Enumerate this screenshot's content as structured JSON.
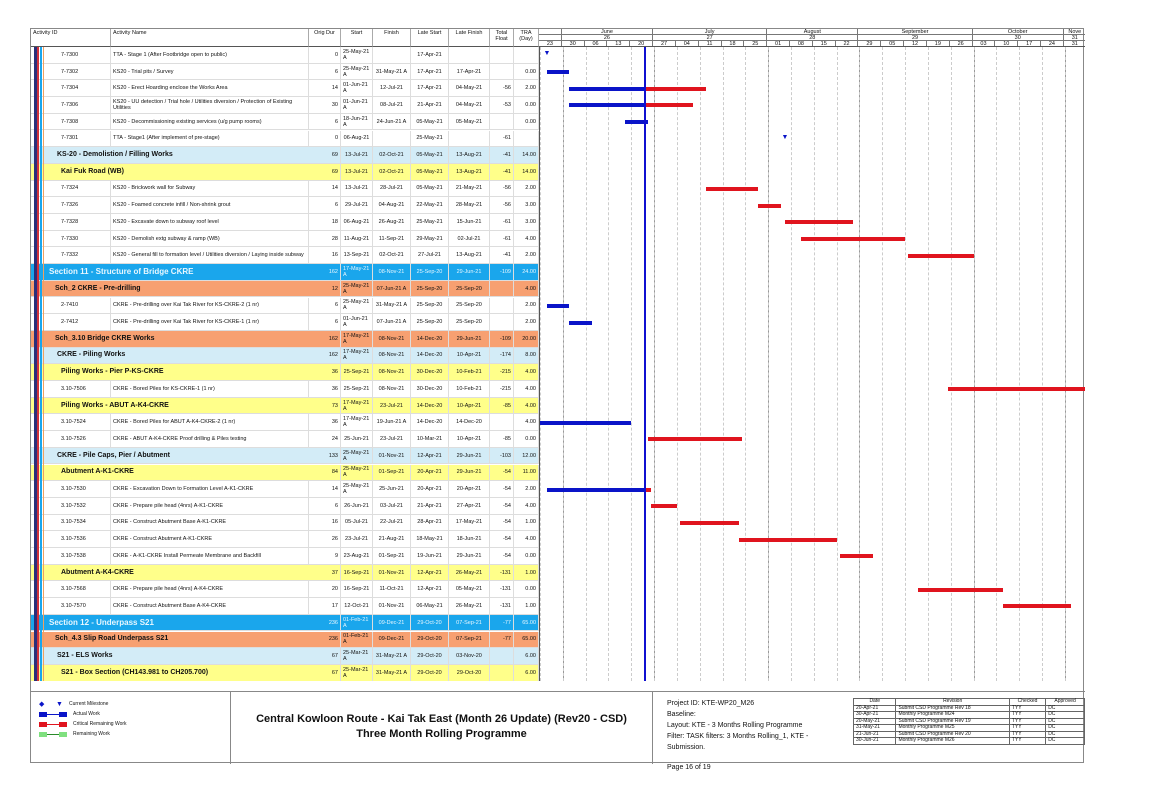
{
  "columns": [
    "Activity ID",
    "Activity Name",
    "Orig Dur",
    "Start",
    "Finish",
    "Late Start",
    "Late Finish",
    "Total Float",
    "TRA (Day)"
  ],
  "colors": {
    "actual": "#0a14c8",
    "critical": "#e0141e",
    "remaining": "#7fe07f",
    "section": "#1aa6ec",
    "summary": "#d3ecf7",
    "wbs": "#ffff8a",
    "orange": "#f7a071",
    "data_date_line": "#1010d0"
  },
  "timeline": {
    "origin": "2021-05-23",
    "data_date": "2021-06-24",
    "months": [
      {
        "name": "",
        "week": "",
        "weeks": 1
      },
      {
        "name": "June",
        "week": "26",
        "weeks": 4
      },
      {
        "name": "July",
        "week": "27",
        "weeks": 5
      },
      {
        "name": "August",
        "week": "28",
        "weeks": 4
      },
      {
        "name": "September",
        "week": "29",
        "weeks": 5
      },
      {
        "name": "October",
        "week": "30",
        "weeks": 4
      },
      {
        "name": "Nove",
        "week": "31",
        "weeks": 1
      }
    ],
    "days": [
      "23",
      "30",
      "06",
      "13",
      "20",
      "27",
      "04",
      "11",
      "18",
      "25",
      "01",
      "08",
      "15",
      "22",
      "29",
      "05",
      "12",
      "19",
      "26",
      "03",
      "10",
      "17",
      "24",
      "31"
    ]
  },
  "rows": [
    {
      "type": "task",
      "id": "7-7300",
      "name": "TTA - Stage 1 (After Footbridge open to public)",
      "dur": "0",
      "start": "25-May-21 A",
      "finish": "",
      "ls": "17-Apr-21",
      "lf": "",
      "tf": "",
      "tra": "",
      "milestone": true
    },
    {
      "type": "task",
      "id": "7-7302",
      "name": "KS20 - Trial pits / Survey",
      "dur": "6",
      "start": "25-May-21 A",
      "finish": "31-May-21 A",
      "ls": "17-Apr-21",
      "lf": "17-Apr-21",
      "tf": "",
      "tra": "0.00"
    },
    {
      "type": "task",
      "id": "7-7304",
      "name": "KS20 - Erect Hoarding enclose the Works Area",
      "dur": "14",
      "start": "01-Jun-21 A",
      "finish": "12-Jul-21",
      "ls": "17-Apr-21",
      "lf": "04-May-21",
      "tf": "-56",
      "tra": "2.00"
    },
    {
      "type": "task",
      "id": "7-7306",
      "name": "KS20 - UU detection / Trial hole / Utilities diversion / Protection of Existing Utilities",
      "dur": "30",
      "start": "01-Jun-21 A",
      "finish": "08-Jul-21",
      "ls": "21-Apr-21",
      "lf": "04-May-21",
      "tf": "-53",
      "tra": "0.00"
    },
    {
      "type": "task",
      "id": "7-7308",
      "name": "KS20 - Decommissioning existing services (u/g pump rooms)",
      "dur": "6",
      "start": "18-Jun-21 A",
      "finish": "24-Jun-21 A",
      "ls": "05-May-21",
      "lf": "05-May-21",
      "tf": "",
      "tra": "0.00"
    },
    {
      "type": "task",
      "id": "7-7301",
      "name": "TTA - Stage1 (After implement of pre-stage)",
      "dur": "0",
      "start": "06-Aug-21",
      "finish": "",
      "ls": "25-May-21",
      "lf": "",
      "tf": "-61",
      "tra": "",
      "milestone": true
    },
    {
      "type": "lblue",
      "name": "KS-20 - Demolistion / Filling Works",
      "dur": "69",
      "start": "13-Jul-21",
      "finish": "02-Oct-21",
      "ls": "05-May-21",
      "lf": "13-Aug-21",
      "tf": "-41",
      "tra": "14.00"
    },
    {
      "type": "yellow",
      "name": "Kai Fuk Road (WB)",
      "dur": "69",
      "start": "13-Jul-21",
      "finish": "02-Oct-21",
      "ls": "05-May-21",
      "lf": "13-Aug-21",
      "tf": "-41",
      "tra": "14.00"
    },
    {
      "type": "task",
      "id": "7-7324",
      "name": "KS20 - Brickwork wall for Subway",
      "dur": "14",
      "start": "13-Jul-21",
      "finish": "28-Jul-21",
      "ls": "05-May-21",
      "lf": "21-May-21",
      "tf": "-56",
      "tra": "2.00"
    },
    {
      "type": "task",
      "id": "7-7326",
      "name": "KS20 - Foamed concrete infill / Non-shrink grout",
      "dur": "6",
      "start": "29-Jul-21",
      "finish": "04-Aug-21",
      "ls": "22-May-21",
      "lf": "28-May-21",
      "tf": "-56",
      "tra": "3.00"
    },
    {
      "type": "task",
      "id": "7-7328",
      "name": "KS20 - Excavate down to subway roof level",
      "dur": "18",
      "start": "06-Aug-21",
      "finish": "26-Aug-21",
      "ls": "25-May-21",
      "lf": "15-Jun-21",
      "tf": "-61",
      "tra": "3.00"
    },
    {
      "type": "task",
      "id": "7-7330",
      "name": "KS20 - Demolish extg subway & ramp (WB)",
      "dur": "28",
      "start": "11-Aug-21",
      "finish": "11-Sep-21",
      "ls": "29-May-21",
      "lf": "02-Jul-21",
      "tf": "-61",
      "tra": "4.00"
    },
    {
      "type": "task",
      "id": "7-7332",
      "name": "KS20 - General fill to formation level / Utilities diversion / Laying inside subway",
      "dur": "16",
      "start": "13-Sep-21",
      "finish": "02-Oct-21",
      "ls": "27-Jul-21",
      "lf": "13-Aug-21",
      "tf": "-41",
      "tra": "2.00"
    },
    {
      "type": "section",
      "name": "Section 11 - Structure of Bridge CKRE",
      "dur": "162",
      "start": "17-May-21 A",
      "finish": "08-Nov-21",
      "ls": "25-Sep-20",
      "lf": "29-Jun-21",
      "tf": "-109",
      "tra": "24.00"
    },
    {
      "type": "orange",
      "name": "Sch_2 CKRE - Pre-drilling",
      "dur": "12",
      "start": "25-May-21 A",
      "finish": "07-Jun-21 A",
      "ls": "25-Sep-20",
      "lf": "25-Sep-20",
      "tf": "",
      "tra": "4.00"
    },
    {
      "type": "task",
      "id": "2-7410",
      "name": "CKRE - Pre-drilling over Kai Tak River for KS-CKRE-2 (1 nr)",
      "dur": "6",
      "start": "25-May-21 A",
      "finish": "31-May-21 A",
      "ls": "25-Sep-20",
      "lf": "25-Sep-20",
      "tf": "",
      "tra": "2.00"
    },
    {
      "type": "task",
      "id": "2-7412",
      "name": "CKRE - Pre-drilling over Kai Tak River for KS-CKRE-1 (1 nr)",
      "dur": "6",
      "start": "01-Jun-21 A",
      "finish": "07-Jun-21 A",
      "ls": "25-Sep-20",
      "lf": "25-Sep-20",
      "tf": "",
      "tra": "2.00"
    },
    {
      "type": "orange",
      "name": "Sch_3.10 Bridge CKRE Works",
      "dur": "162",
      "start": "17-May-21 A",
      "finish": "08-Nov-21",
      "ls": "14-Dec-20",
      "lf": "29-Jun-21",
      "tf": "-109",
      "tra": "20.00"
    },
    {
      "type": "lblue",
      "name": "CKRE - Piling Works",
      "dur": "162",
      "start": "17-May-21 A",
      "finish": "08-Nov-21",
      "ls": "14-Dec-20",
      "lf": "10-Apr-21",
      "tf": "-174",
      "tra": "8.00"
    },
    {
      "type": "yellow",
      "name": "Piling Works - Pier P-KS-CKRE",
      "dur": "36",
      "start": "25-Sep-21",
      "finish": "08-Nov-21",
      "ls": "30-Dec-20",
      "lf": "10-Feb-21",
      "tf": "-215",
      "tra": "4.00"
    },
    {
      "type": "task",
      "id": "3.10-7506",
      "name": "CKRE - Bored Piles for KS-CKRE-1 (1 nr)",
      "dur": "36",
      "start": "25-Sep-21",
      "finish": "08-Nov-21",
      "ls": "30-Dec-20",
      "lf": "10-Feb-21",
      "tf": "-215",
      "tra": "4.00"
    },
    {
      "type": "yellow",
      "name": "Piling Works - ABUT A-K4-CKRE",
      "dur": "73",
      "start": "17-May-21 A",
      "finish": "23-Jul-21",
      "ls": "14-Dec-20",
      "lf": "10-Apr-21",
      "tf": "-85",
      "tra": "4.00"
    },
    {
      "type": "task",
      "id": "3.10-7524",
      "name": "CKRE - Bored Piles for ABUT A-K4-CKRE-2 (1 nr)",
      "dur": "36",
      "start": "17-May-21 A",
      "finish": "19-Jun-21 A",
      "ls": "14-Dec-20",
      "lf": "14-Dec-20",
      "tf": "",
      "tra": "4.00"
    },
    {
      "type": "task",
      "id": "3.10-7526",
      "name": "CKRE - ABUT A-K4-CKRE Proof drilling & Piles testing",
      "dur": "24",
      "start": "25-Jun-21",
      "finish": "23-Jul-21",
      "ls": "10-Mar-21",
      "lf": "10-Apr-21",
      "tf": "-85",
      "tra": "0.00"
    },
    {
      "type": "lblue",
      "name": "CKRE - Pile Caps, Pier / Abutment",
      "dur": "133",
      "start": "25-May-21 A",
      "finish": "01-Nov-21",
      "ls": "12-Apr-21",
      "lf": "29-Jun-21",
      "tf": "-103",
      "tra": "12.00"
    },
    {
      "type": "yellow",
      "name": "Abutment A-K1-CKRE",
      "dur": "84",
      "start": "25-May-21 A",
      "finish": "01-Sep-21",
      "ls": "20-Apr-21",
      "lf": "29-Jun-21",
      "tf": "-54",
      "tra": "11.00"
    },
    {
      "type": "task",
      "id": "3.10-7530",
      "name": "CKRE - Excavation Down to Formation Level A-K1-CKRE",
      "dur": "14",
      "start": "25-May-21 A",
      "finish": "25-Jun-21",
      "ls": "20-Apr-21",
      "lf": "20-Apr-21",
      "tf": "-54",
      "tra": "2.00"
    },
    {
      "type": "task",
      "id": "3.10-7532",
      "name": "CKRE - Prepare pile head (4nrs) A-K1-CKRE",
      "dur": "6",
      "start": "26-Jun-21",
      "finish": "03-Jul-21",
      "ls": "21-Apr-21",
      "lf": "27-Apr-21",
      "tf": "-54",
      "tra": "4.00"
    },
    {
      "type": "task",
      "id": "3.10-7534",
      "name": "CKRE - Construct Abutment Base A-K1-CKRE",
      "dur": "16",
      "start": "05-Jul-21",
      "finish": "22-Jul-21",
      "ls": "28-Apr-21",
      "lf": "17-May-21",
      "tf": "-54",
      "tra": "1.00"
    },
    {
      "type": "task",
      "id": "3.10-7536",
      "name": "CKRE - Construct Abutment A-K1-CKRE",
      "dur": "26",
      "start": "23-Jul-21",
      "finish": "21-Aug-21",
      "ls": "18-May-21",
      "lf": "18-Jun-21",
      "tf": "-54",
      "tra": "4.00"
    },
    {
      "type": "task",
      "id": "3.10-7538",
      "name": "CKRE - A-K1-CKRE Install Permeate Membrane and Backfill",
      "dur": "9",
      "start": "23-Aug-21",
      "finish": "01-Sep-21",
      "ls": "19-Jun-21",
      "lf": "29-Jun-21",
      "tf": "-54",
      "tra": "0.00"
    },
    {
      "type": "yellow",
      "name": "Abutment A-K4-CKRE",
      "dur": "37",
      "start": "16-Sep-21",
      "finish": "01-Nov-21",
      "ls": "12-Apr-21",
      "lf": "26-May-21",
      "tf": "-131",
      "tra": "1.00"
    },
    {
      "type": "task",
      "id": "3.10-7568",
      "name": "CKRE - Prepare pile head (4nrs) A-K4-CKRE",
      "dur": "20",
      "start": "16-Sep-21",
      "finish": "11-Oct-21",
      "ls": "12-Apr-21",
      "lf": "05-May-21",
      "tf": "-131",
      "tra": "0.00"
    },
    {
      "type": "task",
      "id": "3.10-7570",
      "name": "CKRE - Construct Abutment Base A-K4-CKRE",
      "dur": "17",
      "start": "12-Oct-21",
      "finish": "01-Nov-21",
      "ls": "06-May-21",
      "lf": "26-May-21",
      "tf": "-131",
      "tra": "1.00"
    },
    {
      "type": "section",
      "name": "Section 12 - Underpass S21",
      "dur": "236",
      "start": "01-Feb-21 A",
      "finish": "09-Dec-21",
      "ls": "29-Oct-20",
      "lf": "07-Sep-21",
      "tf": "-77",
      "tra": "65.00"
    },
    {
      "type": "orange",
      "name": "Sch_4.3 Slip Road Underpass S21",
      "dur": "236",
      "start": "01-Feb-21 A",
      "finish": "09-Dec-21",
      "ls": "29-Oct-20",
      "lf": "07-Sep-21",
      "tf": "-77",
      "tra": "65.00"
    },
    {
      "type": "lblue",
      "name": "S21 - ELS Works",
      "dur": "67",
      "start": "25-Mar-21 A",
      "finish": "31-May-21 A",
      "ls": "29-Oct-20",
      "lf": "03-Nov-20",
      "tf": "",
      "tra": "6.00"
    },
    {
      "type": "yellow",
      "name": "S21 - Box Section (CH143.981 to CH205.700)",
      "dur": "67",
      "start": "25-Mar-21 A",
      "finish": "31-May-21 A",
      "ls": "29-Oct-20",
      "lf": "29-Oct-20",
      "tf": "",
      "tra": "6.00"
    }
  ],
  "legend": [
    "Current Milestone",
    "Actual Work",
    "Critical Remaining Work",
    "Remaining Work"
  ],
  "title": {
    "line1": "Central Kowloon Route - Kai Tak East (Month 26 Update) (Rev20 - CSD)",
    "line2": "Three Month Rolling Programme"
  },
  "project": {
    "id": "Project ID: KTE-WP20_M26",
    "baseline": "Baseline:",
    "layout": "Layout: KTE - 3 Months Rolling Programme",
    "filter": "Filter: TASK filters: 3 Months Rolling_1, KTE - Submission.",
    "page": "Page 16 of 19"
  },
  "revisions": {
    "headers": [
      "Date",
      "Revision",
      "Checked",
      "Approved"
    ],
    "rows": [
      [
        "20-Apr-21",
        "Submit CSD Programme Rev 18",
        "TYY",
        "DC"
      ],
      [
        "30-Apr-21",
        "Monthly Programme M24",
        "TYY",
        "DC"
      ],
      [
        "20-May-21",
        "Submit CSD Programme Rev 19",
        "TYY",
        "DC"
      ],
      [
        "31-May-21",
        "Monthly Programme M25",
        "TYY",
        "DC"
      ],
      [
        "21-Jun-21",
        "Submit CSD Programme Rev 20",
        "TYY",
        "DC"
      ],
      [
        "30-Jun-21",
        "Monthly Programme M26",
        "TYY",
        "DC"
      ]
    ]
  }
}
